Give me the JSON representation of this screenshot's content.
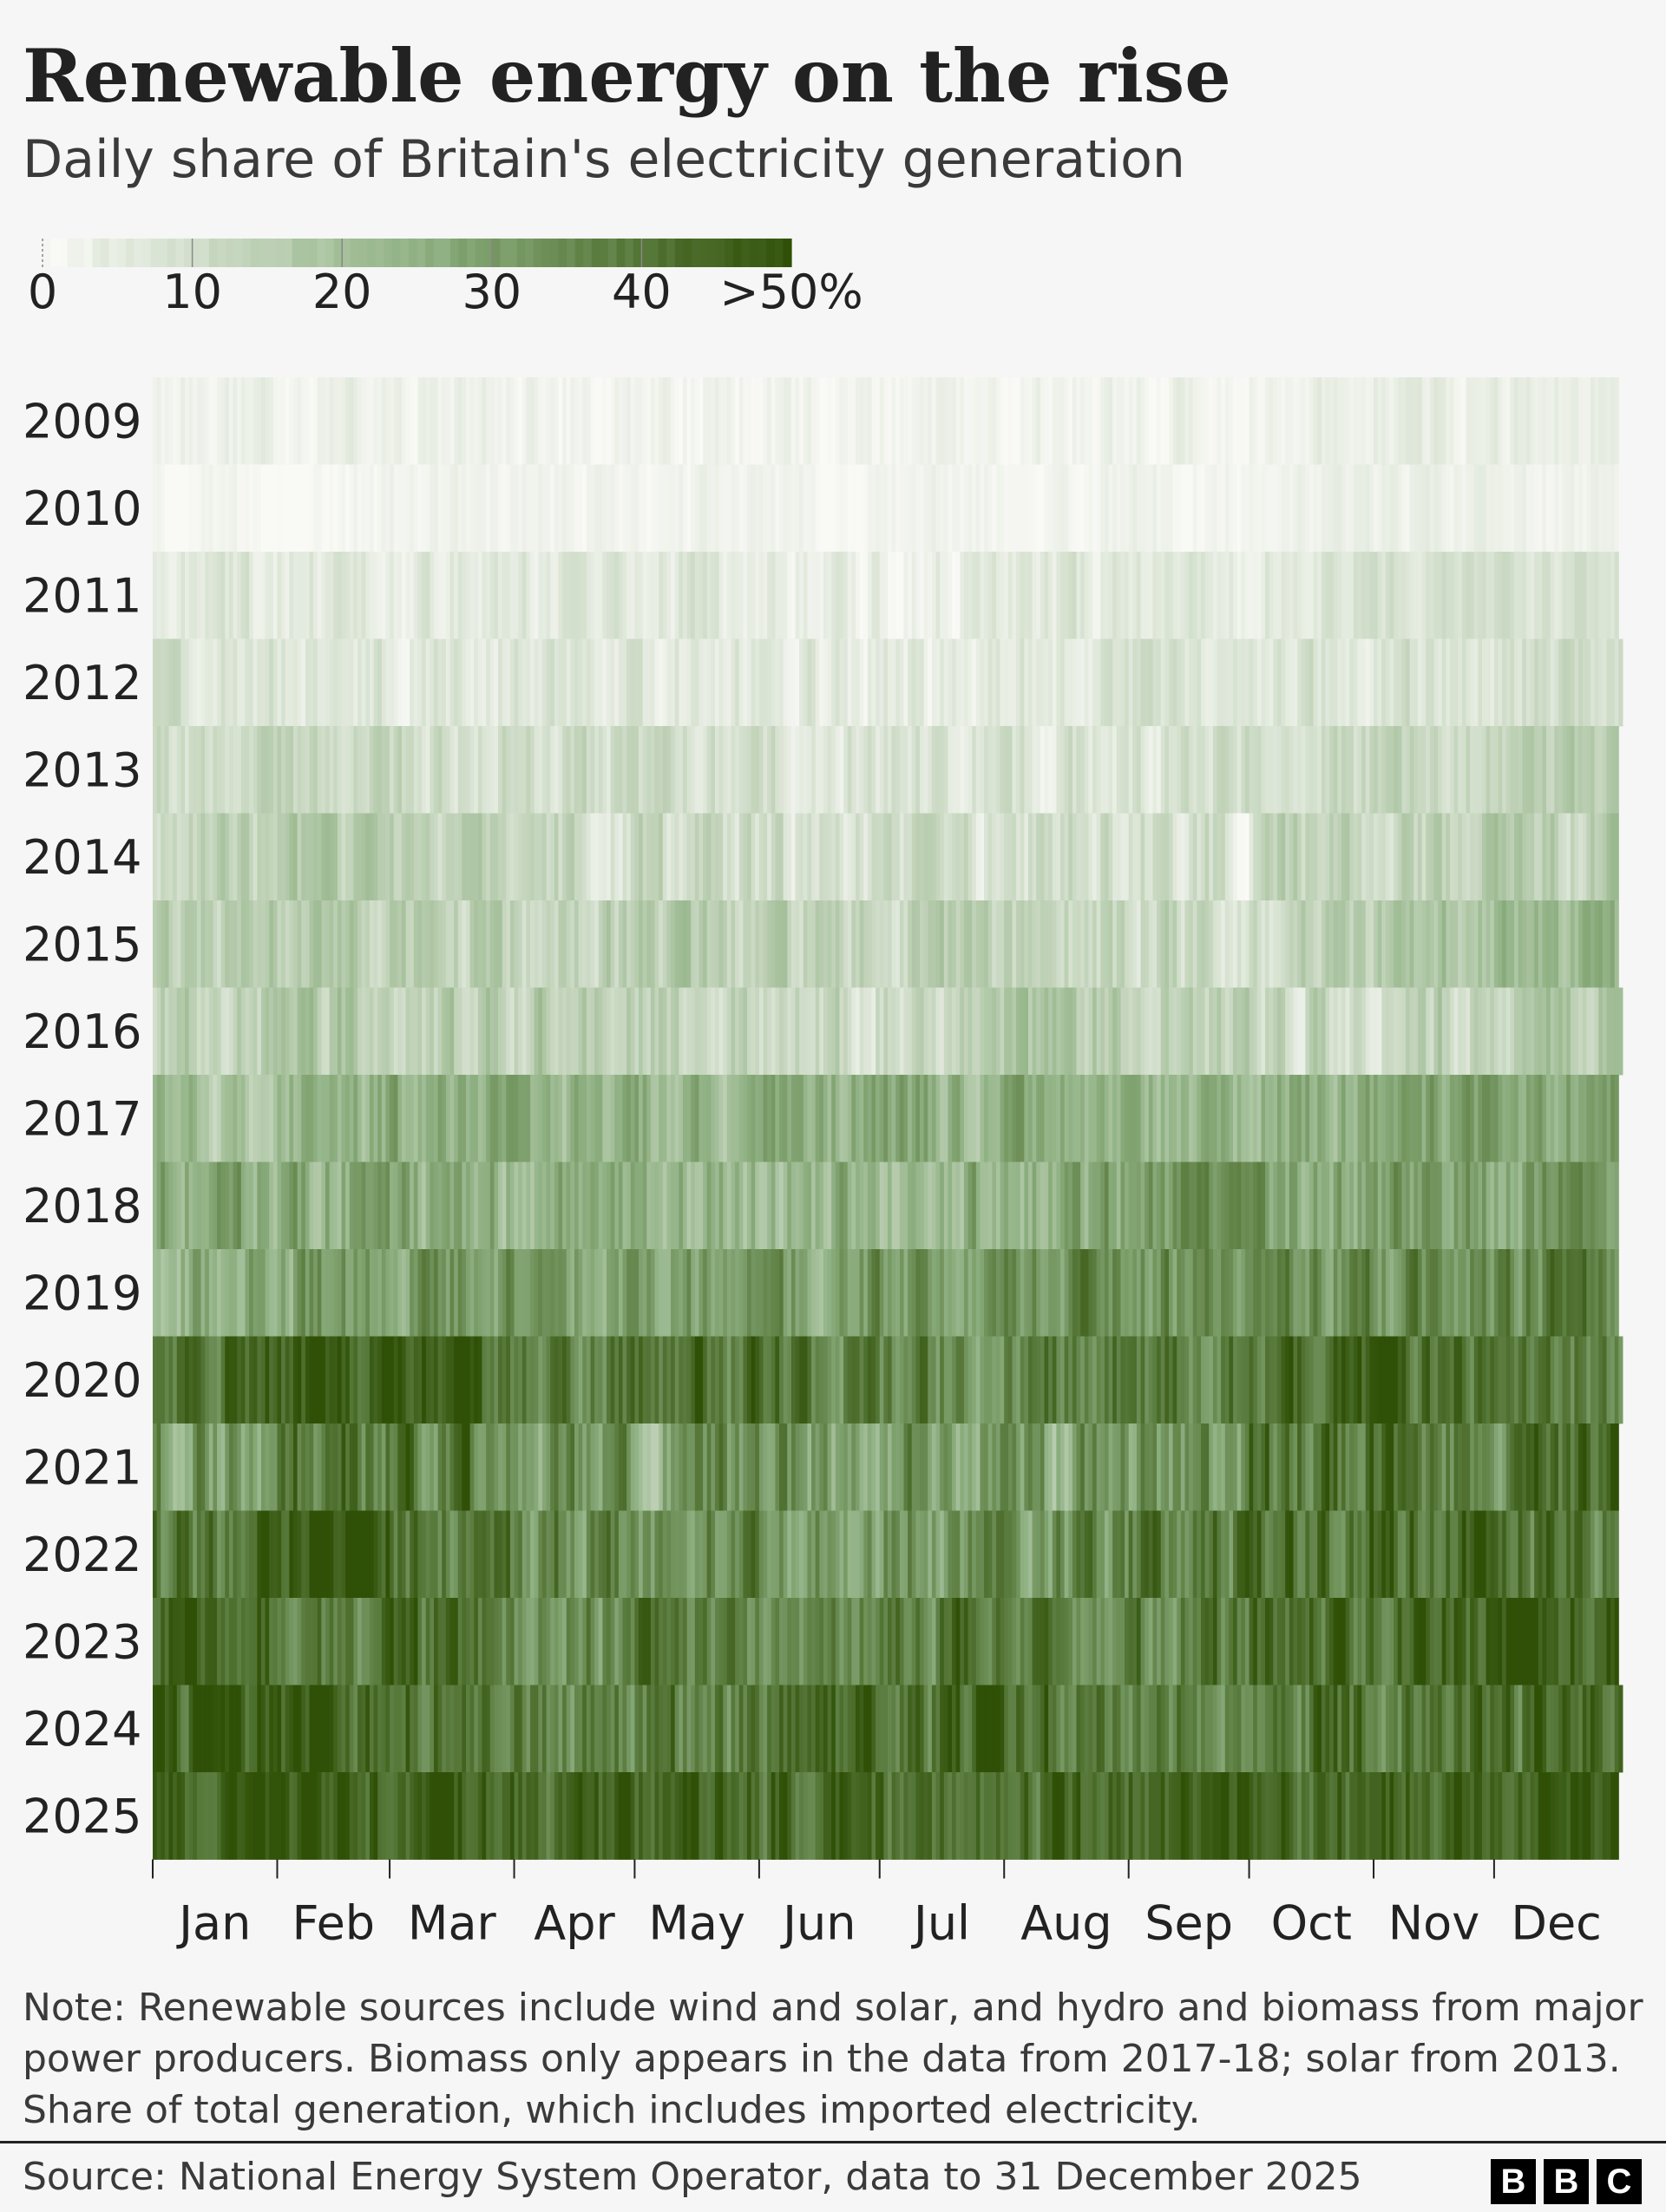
{
  "title": "Renewable energy on the rise",
  "subtitle": "Daily share of Britain's electricity generation",
  "note": "Note: Renewable sources include wind and solar, and hydro and biomass from major power producers. Biomass only appears in the data from 2017-18; solar from 2013. Share of total generation, which includes imported electricity.",
  "source": "Source: National Energy System Operator, data to 31 December 2025",
  "logo": [
    "B",
    "B",
    "C"
  ],
  "colors": {
    "scale_low": "#f9f9f6",
    "scale_mid": "#8fb183",
    "scale_high": "#2f5006",
    "text": "#222222",
    "background": "#f6f6f6"
  },
  "chart_data": {
    "type": "heatmap",
    "value_unit": "% of daily electricity generation from renewables",
    "color_scale": {
      "min": 0,
      "max": 50,
      "ticks": [
        0,
        10,
        20,
        30,
        40,
        50
      ],
      "tick_labels": [
        "0",
        "10",
        "20",
        "30",
        "40",
        ">50%"
      ]
    },
    "x_axis": {
      "unit": "day of year",
      "months": [
        "Jan",
        "Feb",
        "Mar",
        "Apr",
        "May",
        "Jun",
        "Jul",
        "Aug",
        "Sep",
        "Oct",
        "Nov",
        "Dec"
      ]
    },
    "years": [
      "2009",
      "2010",
      "2011",
      "2012",
      "2013",
      "2014",
      "2015",
      "2016",
      "2017",
      "2018",
      "2019",
      "2020",
      "2021",
      "2022",
      "2023",
      "2024",
      "2025"
    ],
    "rows": [
      {
        "year": "2009",
        "monthly_avg": [
          3,
          3,
          3,
          2,
          2,
          1,
          2,
          2,
          3,
          3,
          4,
          4
        ],
        "variability": 2
      },
      {
        "year": "2010",
        "monthly_avg": [
          1,
          1,
          2,
          2,
          2,
          1,
          2,
          2,
          2,
          3,
          3,
          2
        ],
        "variability": 1.5
      },
      {
        "year": "2011",
        "monthly_avg": [
          5,
          6,
          5,
          5,
          6,
          4,
          4,
          5,
          6,
          7,
          8,
          9
        ],
        "variability": 3
      },
      {
        "year": "2012",
        "monthly_avg": [
          8,
          8,
          7,
          7,
          5,
          6,
          5,
          6,
          7,
          8,
          8,
          10
        ],
        "variability": 3.5
      },
      {
        "year": "2013",
        "monthly_avg": [
          9,
          11,
          10,
          10,
          9,
          7,
          7,
          7,
          8,
          10,
          11,
          13
        ],
        "variability": 4
      },
      {
        "year": "2014",
        "monthly_avg": [
          13,
          15,
          13,
          11,
          9,
          8,
          8,
          9,
          8,
          13,
          12,
          15
        ],
        "variability": 5
      },
      {
        "year": "2015",
        "monthly_avg": [
          16,
          15,
          14,
          13,
          14,
          12,
          13,
          12,
          11,
          12,
          18,
          20
        ],
        "variability": 5
      },
      {
        "year": "2016",
        "monthly_avg": [
          14,
          17,
          15,
          15,
          14,
          12,
          13,
          16,
          12,
          11,
          14,
          17
        ],
        "variability": 5.5
      },
      {
        "year": "2017",
        "monthly_avg": [
          20,
          24,
          26,
          22,
          24,
          25,
          24,
          24,
          23,
          26,
          26,
          28
        ],
        "variability": 6
      },
      {
        "year": "2018",
        "monthly_avg": [
          27,
          26,
          25,
          27,
          24,
          22,
          22,
          26,
          31,
          29,
          28,
          30
        ],
        "variability": 7
      },
      {
        "year": "2019",
        "monthly_avg": [
          25,
          30,
          33,
          28,
          27,
          30,
          30,
          34,
          33,
          34,
          33,
          36
        ],
        "variability": 7
      },
      {
        "year": "2020",
        "monthly_avg": [
          42,
          47,
          43,
          38,
          40,
          36,
          36,
          38,
          38,
          40,
          42,
          40
        ],
        "variability": 8
      },
      {
        "year": "2021",
        "monthly_avg": [
          30,
          40,
          38,
          28,
          30,
          30,
          32,
          28,
          30,
          40,
          38,
          40
        ],
        "variability": 9
      },
      {
        "year": "2022",
        "monthly_avg": [
          38,
          48,
          36,
          34,
          36,
          33,
          34,
          33,
          38,
          42,
          45,
          40
        ],
        "variability": 9
      },
      {
        "year": "2023",
        "monthly_avg": [
          44,
          37,
          40,
          36,
          37,
          34,
          39,
          39,
          38,
          42,
          44,
          47
        ],
        "variability": 8
      },
      {
        "year": "2024",
        "monthly_avg": [
          46,
          45,
          45,
          38,
          38,
          40,
          41,
          42,
          38,
          40,
          37,
          44
        ],
        "variability": 8
      },
      {
        "year": "2025",
        "monthly_avg": [
          44,
          45,
          44,
          42,
          44,
          44,
          40,
          43,
          44,
          45,
          45,
          46
        ],
        "variability": 7
      }
    ],
    "legend": "top-left",
    "grid": false
  }
}
